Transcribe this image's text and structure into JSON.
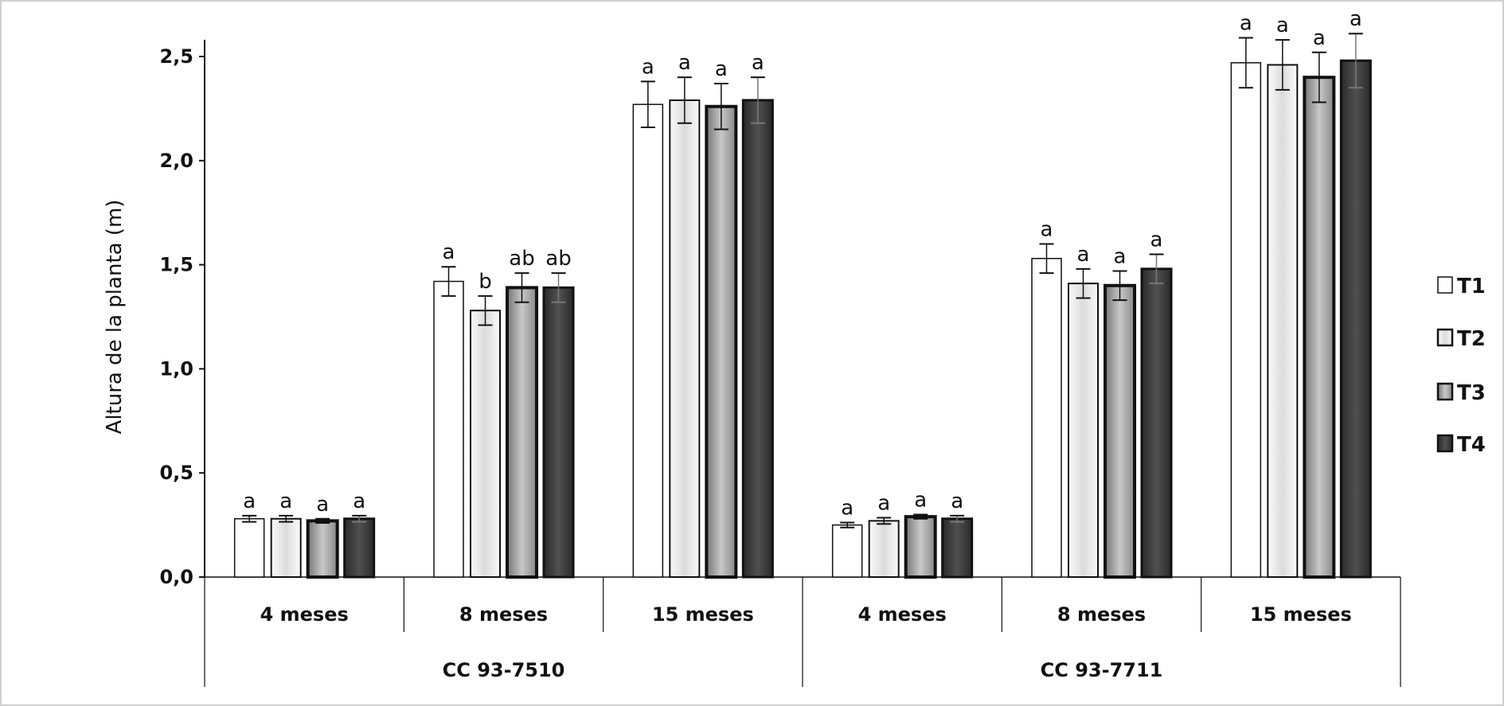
{
  "chart_data": {
    "type": "bar",
    "ylabel": "Altura de la planta (m)",
    "ylim": [
      0,
      2.5
    ],
    "yticks": [
      "0,0",
      "0,5",
      "1,0",
      "1,5",
      "2,0",
      "2,5"
    ],
    "grid": false,
    "legend_position": "right",
    "groups": [
      "CC 93-7510",
      "CC 93-7711"
    ],
    "categories": [
      "4 meses",
      "8 meses",
      "15 meses",
      "4 meses",
      "8 meses",
      "15 meses"
    ],
    "series": [
      {
        "name": "T1",
        "color": "#ffffff",
        "values": [
          0.28,
          1.42,
          2.27,
          0.25,
          1.53,
          2.47
        ],
        "errors": [
          0.015,
          0.07,
          0.11,
          0.012,
          0.07,
          0.12
        ],
        "letters": [
          "a",
          "a",
          "a",
          "a",
          "a",
          "a"
        ]
      },
      {
        "name": "T2",
        "color": "#e2e2e2",
        "values": [
          0.28,
          1.28,
          2.29,
          0.27,
          1.41,
          2.46
        ],
        "errors": [
          0.015,
          0.07,
          0.11,
          0.015,
          0.07,
          0.12
        ],
        "letters": [
          "a",
          "b",
          "a",
          "a",
          "a",
          "a"
        ]
      },
      {
        "name": "T3",
        "color": "#a8a8a8",
        "values": [
          0.27,
          1.39,
          2.26,
          0.29,
          1.4,
          2.4
        ],
        "errors": [
          0.01,
          0.07,
          0.11,
          0.01,
          0.07,
          0.12
        ],
        "letters": [
          "a",
          "ab",
          "a",
          "a",
          "a",
          "a"
        ]
      },
      {
        "name": "T4",
        "color": "#3a3a3a",
        "values": [
          0.28,
          1.39,
          2.29,
          0.28,
          1.48,
          2.48
        ],
        "errors": [
          0.015,
          0.07,
          0.11,
          0.015,
          0.07,
          0.13
        ],
        "letters": [
          "a",
          "ab",
          "a",
          "a",
          "a",
          "a"
        ]
      }
    ]
  }
}
